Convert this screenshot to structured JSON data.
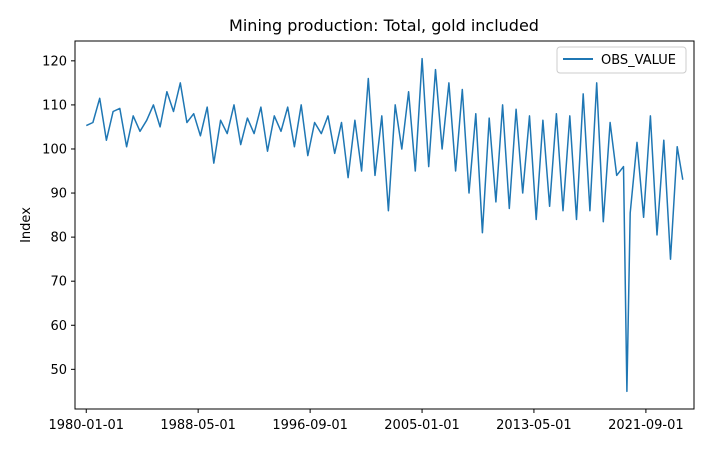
{
  "chart_data": {
    "type": "line",
    "title": "Mining production: Total, gold included",
    "xlabel": "",
    "ylabel": "Index",
    "x_ticks": [
      "1980-01-01",
      "1988-05-01",
      "1996-09-01",
      "2005-01-01",
      "2013-05-01",
      "2021-09-01"
    ],
    "y_ticks": [
      50,
      60,
      70,
      80,
      90,
      100,
      110,
      120
    ],
    "xlim": [
      "1979-03-01",
      "2025-04-01"
    ],
    "ylim": [
      41,
      124.5
    ],
    "grid": false,
    "legend_position": "top-right",
    "line_color": "#1f77b4",
    "series": [
      {
        "name": "OBS_VALUE",
        "x": [
          "1980-01-01",
          "1980-07-01",
          "1981-01-01",
          "1981-07-01",
          "1982-01-01",
          "1982-07-01",
          "1983-01-01",
          "1983-07-01",
          "1984-01-01",
          "1984-07-01",
          "1985-01-01",
          "1985-07-01",
          "1986-01-01",
          "1986-07-01",
          "1987-01-01",
          "1987-07-01",
          "1988-01-01",
          "1988-07-01",
          "1989-01-01",
          "1989-07-01",
          "1990-01-01",
          "1990-07-01",
          "1991-01-01",
          "1991-07-01",
          "1992-01-01",
          "1992-07-01",
          "1993-01-01",
          "1993-07-01",
          "1994-01-01",
          "1994-07-01",
          "1995-01-01",
          "1995-07-01",
          "1996-01-01",
          "1996-07-01",
          "1997-01-01",
          "1997-07-01",
          "1998-01-01",
          "1998-07-01",
          "1999-01-01",
          "1999-07-01",
          "2000-01-01",
          "2000-07-01",
          "2001-01-01",
          "2001-07-01",
          "2002-01-01",
          "2002-07-01",
          "2003-01-01",
          "2003-07-01",
          "2004-01-01",
          "2004-07-01",
          "2005-01-01",
          "2005-07-01",
          "2006-01-01",
          "2006-07-01",
          "2007-01-01",
          "2007-07-01",
          "2008-01-01",
          "2008-07-01",
          "2009-01-01",
          "2009-07-01",
          "2010-01-01",
          "2010-07-01",
          "2011-01-01",
          "2011-07-01",
          "2012-01-01",
          "2012-07-01",
          "2013-01-01",
          "2013-07-01",
          "2014-01-01",
          "2014-07-01",
          "2015-01-01",
          "2015-07-01",
          "2016-01-01",
          "2016-07-01",
          "2017-01-01",
          "2017-07-01",
          "2018-01-01",
          "2018-07-01",
          "2019-01-01",
          "2019-07-01",
          "2020-01-01",
          "2020-04-01",
          "2020-07-01",
          "2021-01-01",
          "2021-07-01",
          "2022-01-01",
          "2022-07-01",
          "2023-01-01",
          "2023-07-01",
          "2024-01-01",
          "2024-06-01"
        ],
        "values": [
          105.3,
          106.0,
          111.5,
          102.0,
          108.5,
          109.2,
          100.5,
          107.5,
          104.0,
          106.5,
          110.0,
          105.0,
          113.0,
          108.5,
          115.0,
          106.0,
          108.0,
          103.0,
          109.5,
          96.8,
          106.5,
          103.5,
          110.0,
          101.0,
          107.0,
          103.5,
          109.5,
          99.5,
          107.5,
          104.0,
          109.5,
          100.5,
          110.0,
          98.5,
          106.0,
          103.5,
          107.5,
          99.0,
          106.0,
          93.5,
          106.5,
          95.0,
          116.0,
          94.0,
          107.5,
          86.0,
          110.0,
          100.0,
          113.0,
          95.0,
          120.5,
          96.0,
          118.0,
          100.0,
          115.0,
          95.0,
          113.5,
          90.0,
          108.0,
          81.0,
          107.0,
          88.0,
          110.0,
          86.5,
          109.0,
          90.0,
          107.5,
          84.0,
          106.5,
          87.0,
          108.0,
          86.0,
          107.5,
          84.0,
          112.5,
          86.0,
          115.0,
          83.5,
          106.0,
          94.0,
          96.0,
          45.0,
          85.5,
          101.5,
          84.5,
          107.5,
          80.5,
          102.0,
          75.0,
          100.5,
          93.0
        ]
      }
    ]
  }
}
